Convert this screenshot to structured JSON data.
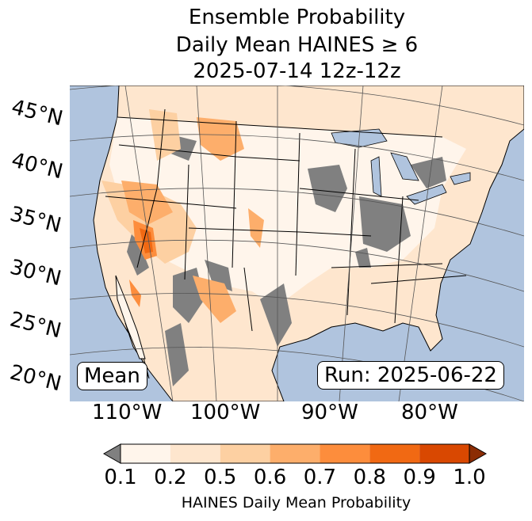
{
  "title": {
    "line1": "Ensemble Probability",
    "line2": "Daily Mean HAINES ≥ 6",
    "line3": "2025-07-14 12z-12z"
  },
  "map": {
    "lat_labels": [
      "45°N",
      "40°N",
      "35°N",
      "30°N",
      "25°N",
      "20°N"
    ],
    "lon_labels": [
      "110°W",
      "100°W",
      "90°W",
      "80°W"
    ],
    "mean_label": "Mean",
    "run_label": "Run: 2025-06-22",
    "colors": {
      "ocean": "#b0c4de",
      "missing": "#808080"
    }
  },
  "colorbar": {
    "ticks": [
      "0.1",
      "0.2",
      "0.5",
      "0.6",
      "0.7",
      "0.8",
      "0.9",
      "1.0"
    ],
    "colors": [
      "#fff5eb",
      "#fee6ce",
      "#fdd0a2",
      "#fdae6b",
      "#fd8d3c",
      "#f16913",
      "#d94801"
    ],
    "under_color": "#808080",
    "over_color": "#8c2d04",
    "label": "HAINES Daily Mean Probability"
  }
}
